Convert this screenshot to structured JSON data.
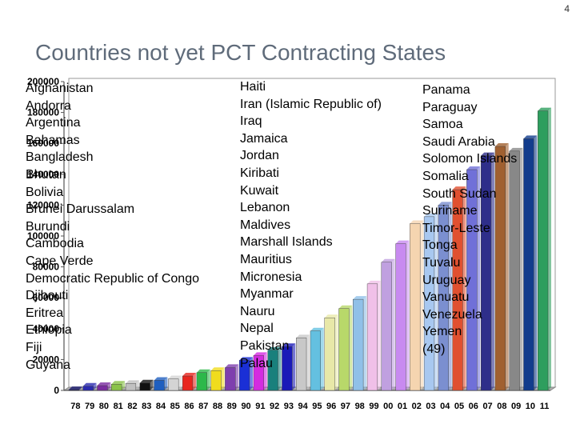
{
  "page_number": "4",
  "title": "Countries not yet PCT Contracting States",
  "lists": {
    "col1": [
      "Afghanistan",
      "Andorra",
      "Argentina",
      "Bahamas",
      "Bangladesh",
      "Bhutan",
      "Bolivia",
      "Brunei Darussalam",
      "Burundi",
      "Cambodia",
      "Cape Verde",
      "Democratic Republic of Congo",
      "Djibouti",
      "Eritrea",
      "Ethiopia",
      "Fiji",
      "Guyana"
    ],
    "col2": [
      "Haiti",
      "Iran (Islamic Republic of)",
      "Iraq",
      "Jamaica",
      "Jordan",
      "Kiribati",
      "Kuwait",
      "Lebanon",
      "Maldives",
      "Marshall Islands",
      "Mauritius",
      "Micronesia",
      "Myanmar",
      "Nauru",
      "Nepal",
      "Pakistan",
      "Palau"
    ],
    "col3": [
      "Panama",
      "Paraguay",
      "Samoa",
      "Saudi Arabia",
      "Solomon Islands",
      "Somalia",
      "South Sudan",
      "Suriname",
      "Timor-Leste",
      "Tonga",
      "Tuvalu",
      "Uruguay",
      "Vanuatu",
      "Venezuela",
      "Yemen",
      "(49)"
    ]
  },
  "chart_data": {
    "type": "bar",
    "title": "",
    "xlabel": "",
    "ylabel": "",
    "ylim": [
      0,
      200000
    ],
    "yticks": [
      "200000",
      "180000",
      "160000",
      "140000",
      "120000",
      "100000",
      "80000",
      "60000",
      "40000",
      "20000",
      "0"
    ],
    "grid": false,
    "categories": [
      "78",
      "79",
      "80",
      "81",
      "82",
      "83",
      "84",
      "85",
      "86",
      "87",
      "88",
      "89",
      "90",
      "91",
      "92",
      "93",
      "94",
      "95",
      "96",
      "97",
      "98",
      "99",
      "00",
      "01",
      "02",
      "03",
      "04",
      "05",
      "06",
      "07",
      "08",
      "09",
      "10",
      "11"
    ],
    "values": [
      450,
      2700,
      3100,
      4000,
      4500,
      4800,
      6500,
      7500,
      9300,
      11500,
      12800,
      14800,
      19500,
      22600,
      26000,
      28400,
      34000,
      38500,
      47000,
      53000,
      59000,
      69000,
      83000,
      95000,
      108000,
      112500,
      120000,
      130000,
      143000,
      152000,
      158000,
      155000,
      163000,
      181000
    ],
    "colors": [
      "#1a1a6e",
      "#2b2bb0",
      "#7a2ba0",
      "#8bc34a",
      "#c0c0c0",
      "#111111",
      "#1f5fbf",
      "#d4d4d4",
      "#e8261e",
      "#2db84a",
      "#f0dc1e",
      "#7e3fae",
      "#1a2fd6",
      "#d42be0",
      "#19807c",
      "#1a1ab8",
      "#c8c8c8",
      "#64c0e0",
      "#e8e8a8",
      "#b8d86a",
      "#90c0e8",
      "#f0c0e8",
      "#c0a0e0",
      "#c88af0",
      "#f5d5b0",
      "#a8c8f0",
      "#7b8fd0",
      "#e05030",
      "#7070d8",
      "#2e2e8a",
      "#a06030",
      "#888888",
      "#123c8c",
      "#2e9e5e"
    ]
  }
}
